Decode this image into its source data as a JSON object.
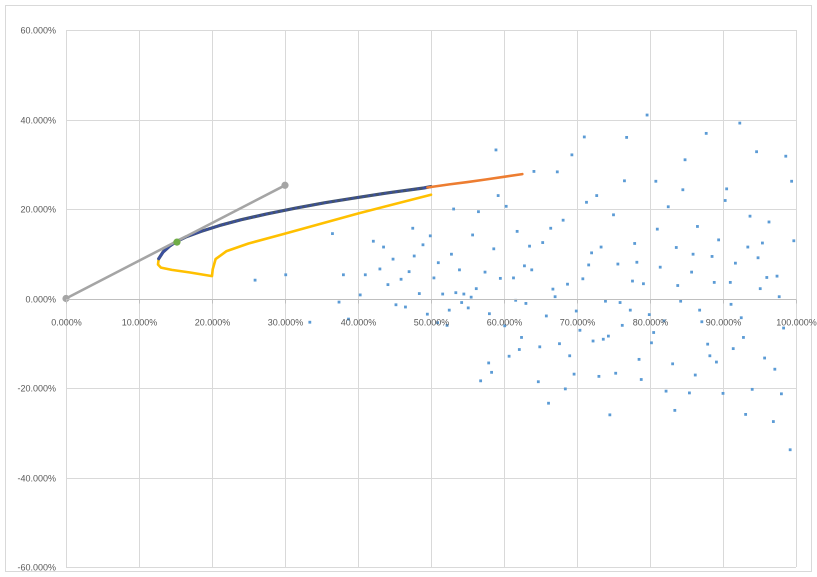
{
  "chart_data": {
    "type": "scatter",
    "xlim": [
      0,
      100
    ],
    "ylim": [
      -60,
      60
    ],
    "x_ticks": [
      0,
      10,
      20,
      30,
      40,
      50,
      60,
      70,
      80,
      90,
      100
    ],
    "x_tick_labels": [
      "0.000%",
      "10.000%",
      "20.000%",
      "30.000%",
      "40.000%",
      "50.000%",
      "60.000%",
      "70.000%",
      "80.000%",
      "90.000%",
      "100.000%"
    ],
    "y_ticks": [
      -60,
      -40,
      -20,
      0,
      20,
      40,
      60
    ],
    "y_tick_labels": [
      "-60.000%",
      "-40.000%",
      "-20.000%",
      "0.000%",
      "20.000%",
      "40.000%",
      "60.000%"
    ],
    "grid": true,
    "legend": "none",
    "series": [
      {
        "color": "#5b9bd5",
        "style": "markers",
        "points": [
          [
            25.9,
            4.1
          ],
          [
            30.1,
            5.3
          ],
          [
            33.4,
            -5.3
          ],
          [
            36.5,
            14.5
          ],
          [
            38.0,
            5.3
          ],
          [
            38.7,
            -4.6
          ],
          [
            40.3,
            0.8
          ],
          [
            41.0,
            5.3
          ],
          [
            43.0,
            6.6
          ],
          [
            43.5,
            11.5
          ],
          [
            44.1,
            3.1
          ],
          [
            44.8,
            8.8
          ],
          [
            45.9,
            4.3
          ],
          [
            46.5,
            -1.9
          ],
          [
            47.0,
            6.0
          ],
          [
            47.7,
            9.5
          ],
          [
            48.4,
            1.1
          ],
          [
            48.9,
            12.0
          ],
          [
            49.5,
            -3.5
          ],
          [
            49.9,
            14.0
          ],
          [
            50.4,
            4.6
          ],
          [
            51.0,
            8.0
          ],
          [
            51.6,
            1.0
          ],
          [
            52.2,
            -6.0
          ],
          [
            52.8,
            9.9
          ],
          [
            53.4,
            1.3
          ],
          [
            53.9,
            6.4
          ],
          [
            54.5,
            1.0
          ],
          [
            55.1,
            -2.1
          ],
          [
            55.7,
            14.2
          ],
          [
            56.2,
            2.2
          ],
          [
            56.8,
            -18.4
          ],
          [
            57.4,
            5.9
          ],
          [
            58.0,
            -3.4
          ],
          [
            58.6,
            11.1
          ],
          [
            58.9,
            33.2
          ],
          [
            59.5,
            4.5
          ],
          [
            60.1,
            -6.1
          ],
          [
            60.7,
            -12.9
          ],
          [
            61.3,
            4.6
          ],
          [
            61.8,
            15.0
          ],
          [
            62.4,
            -8.7
          ],
          [
            63.0,
            -1.1
          ],
          [
            63.5,
            11.7
          ],
          [
            64.1,
            28.4
          ],
          [
            64.7,
            -18.6
          ],
          [
            65.3,
            12.5
          ],
          [
            65.8,
            -3.9
          ],
          [
            66.4,
            15.7
          ],
          [
            67.0,
            0.4
          ],
          [
            67.6,
            -10.1
          ],
          [
            68.1,
            17.5
          ],
          [
            68.7,
            3.2
          ],
          [
            69.3,
            32.1
          ],
          [
            69.9,
            -2.8
          ],
          [
            70.4,
            -7.1
          ],
          [
            71.0,
            36.1
          ],
          [
            71.6,
            7.5
          ],
          [
            72.2,
            -9.5
          ],
          [
            72.7,
            23.0
          ],
          [
            73.3,
            11.5
          ],
          [
            73.9,
            -0.6
          ],
          [
            74.5,
            -26.0
          ],
          [
            75.0,
            18.7
          ],
          [
            75.6,
            7.7
          ],
          [
            76.2,
            -6.0
          ],
          [
            76.8,
            36.0
          ],
          [
            77.3,
            -2.6
          ],
          [
            77.9,
            12.3
          ],
          [
            78.5,
            -13.6
          ],
          [
            79.1,
            3.3
          ],
          [
            79.6,
            41.0
          ],
          [
            80.2,
            -9.9
          ],
          [
            80.8,
            26.2
          ],
          [
            81.4,
            7.0
          ],
          [
            81.9,
            -5.0
          ],
          [
            82.5,
            20.5
          ],
          [
            83.1,
            -14.6
          ],
          [
            83.6,
            11.4
          ],
          [
            84.2,
            -0.6
          ],
          [
            84.8,
            31.0
          ],
          [
            85.4,
            -21.1
          ],
          [
            85.9,
            9.9
          ],
          [
            86.5,
            16.1
          ],
          [
            87.1,
            -5.2
          ],
          [
            87.7,
            36.9
          ],
          [
            88.2,
            -12.8
          ],
          [
            88.8,
            3.6
          ],
          [
            89.4,
            13.1
          ],
          [
            90.0,
            -21.2
          ],
          [
            90.5,
            24.5
          ],
          [
            91.1,
            -1.3
          ],
          [
            91.7,
            7.9
          ],
          [
            92.3,
            39.2
          ],
          [
            92.8,
            -8.7
          ],
          [
            93.4,
            11.5
          ],
          [
            94.0,
            -20.3
          ],
          [
            94.6,
            32.8
          ],
          [
            95.1,
            2.2
          ],
          [
            95.7,
            -13.3
          ],
          [
            96.3,
            17.1
          ],
          [
            96.9,
            -27.5
          ],
          [
            97.4,
            5.0
          ],
          [
            98.0,
            -21.3
          ],
          [
            98.6,
            31.8
          ],
          [
            99.2,
            -33.8
          ],
          [
            99.7,
            12.9
          ],
          [
            37.4,
            -0.8
          ],
          [
            42.1,
            12.8
          ],
          [
            45.2,
            -1.4
          ],
          [
            47.5,
            15.7
          ],
          [
            50.9,
            -5.4
          ],
          [
            53.1,
            20.0
          ],
          [
            55.5,
            0.3
          ],
          [
            57.9,
            -14.4
          ],
          [
            60.3,
            20.6
          ],
          [
            62.8,
            7.3
          ],
          [
            64.9,
            -10.8
          ],
          [
            67.3,
            28.3
          ],
          [
            69.6,
            -16.9
          ],
          [
            72.0,
            10.2
          ],
          [
            74.3,
            -8.4
          ],
          [
            76.5,
            26.3
          ],
          [
            78.8,
            -18.1
          ],
          [
            81.0,
            15.5
          ],
          [
            83.4,
            -25.0
          ],
          [
            85.7,
            5.9
          ],
          [
            87.9,
            -10.2
          ],
          [
            90.3,
            21.9
          ],
          [
            92.5,
            -4.3
          ],
          [
            94.8,
            9.1
          ],
          [
            97.1,
            -15.8
          ],
          [
            99.4,
            26.2
          ],
          [
            66.1,
            -23.4
          ],
          [
            70.8,
            4.4
          ],
          [
            75.3,
            -16.7
          ],
          [
            79.9,
            -3.6
          ],
          [
            84.5,
            24.3
          ],
          [
            89.1,
            -14.2
          ],
          [
            93.7,
            18.4
          ],
          [
            98.3,
            -6.6
          ],
          [
            58.3,
            -16.5
          ],
          [
            62.1,
            -11.4
          ],
          [
            68.4,
            -20.2
          ],
          [
            73.6,
            -9.1
          ],
          [
            77.6,
            3.9
          ],
          [
            82.2,
            -20.7
          ],
          [
            86.8,
            -2.6
          ],
          [
            91.4,
            -11.2
          ],
          [
            96.0,
            4.7
          ],
          [
            52.5,
            -2.6
          ],
          [
            54.2,
            -0.9
          ],
          [
            56.5,
            19.4
          ],
          [
            59.2,
            23.0
          ],
          [
            61.6,
            -0.4
          ],
          [
            63.8,
            6.4
          ],
          [
            66.7,
            2.1
          ],
          [
            69.0,
            -12.8
          ],
          [
            71.3,
            21.5
          ],
          [
            73.0,
            -17.4
          ],
          [
            75.9,
            -0.9
          ],
          [
            78.2,
            8.1
          ],
          [
            80.5,
            -7.6
          ],
          [
            83.8,
            2.9
          ],
          [
            86.2,
            -17.1
          ],
          [
            88.5,
            9.4
          ],
          [
            91.0,
            3.6
          ],
          [
            93.1,
            -25.9
          ],
          [
            95.4,
            12.4
          ],
          [
            97.7,
            0.4
          ]
        ]
      },
      {
        "color": "#ffc000",
        "style": "line",
        "points": [
          [
            50.0,
            23.2
          ],
          [
            40.0,
            19.0
          ],
          [
            30.0,
            14.5
          ],
          [
            25.0,
            12.3
          ],
          [
            22.0,
            10.6
          ],
          [
            20.5,
            8.8
          ],
          [
            20.1,
            6.5
          ],
          [
            20.0,
            5.0
          ],
          [
            17.0,
            5.8
          ],
          [
            14.5,
            6.4
          ],
          [
            13.0,
            6.9
          ],
          [
            12.6,
            7.6
          ],
          [
            12.7,
            8.9
          ],
          [
            13.3,
            10.5
          ]
        ]
      },
      {
        "color": "#44546a",
        "style": "line-markers",
        "points": [
          [
            12.7,
            8.9
          ],
          [
            13.3,
            10.4
          ],
          [
            14.2,
            11.7
          ],
          [
            15.0,
            12.6
          ],
          [
            16.5,
            13.8
          ],
          [
            18.5,
            15.0
          ],
          [
            21.0,
            16.3
          ],
          [
            24.0,
            17.6
          ],
          [
            27.5,
            18.9
          ],
          [
            31.5,
            20.2
          ],
          [
            35.5,
            21.4
          ],
          [
            40.0,
            22.6
          ],
          [
            44.5,
            23.7
          ],
          [
            49.0,
            24.7
          ],
          [
            50.0,
            25.0
          ]
        ]
      },
      {
        "color": "#ed7d31",
        "style": "line",
        "points": [
          [
            49.5,
            24.8
          ],
          [
            52.5,
            25.5
          ],
          [
            55.0,
            26.0
          ],
          [
            57.5,
            26.6
          ],
          [
            60.0,
            27.2
          ],
          [
            62.5,
            27.8
          ]
        ]
      },
      {
        "color": "#a5a5a5",
        "style": "line",
        "points": [
          [
            0.0,
            0.0
          ],
          [
            30.0,
            25.3
          ]
        ]
      },
      {
        "color": "#70ad47",
        "style": "marker",
        "points": [
          [
            15.2,
            12.6
          ]
        ]
      }
    ]
  }
}
